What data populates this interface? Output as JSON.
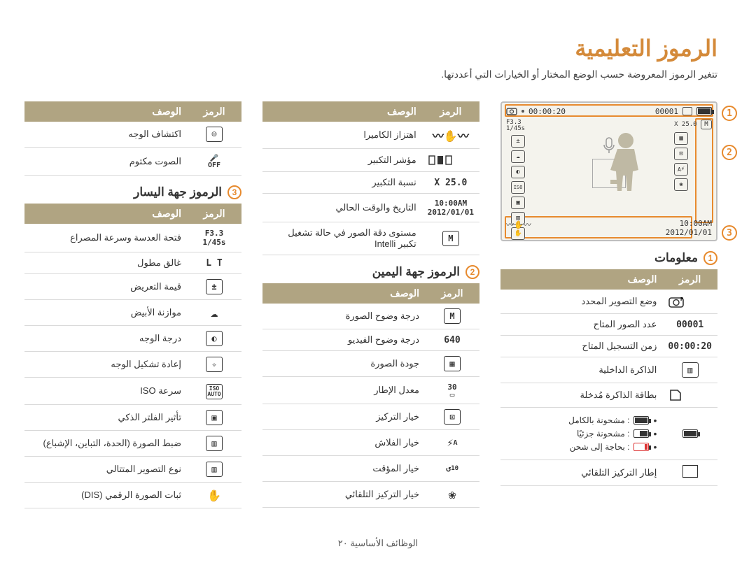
{
  "page": {
    "title": "الرموز التعليمية",
    "subtitle": "تتغير الرموز المعروضة حسب الوضع المختار أو الخيارات التي أعددتها.",
    "footer": "الوظائف الأساسية ٢٠"
  },
  "colors": {
    "accent": "#e78a2e",
    "header_bg": "#b0a482",
    "title": "#d48a3a",
    "border": "#d9d9d9"
  },
  "preview": {
    "rec_time": "00:00:20",
    "counter": "00001",
    "aperture": "F3.3",
    "shutter": "1/45s",
    "zoom": "X 25.0",
    "mode": "M",
    "time": "10:00AM",
    "date": "2012/01/01",
    "auto_flash": "A"
  },
  "table_headers": {
    "symbol": "الرمز",
    "desc": "الوصف"
  },
  "sections": {
    "info": {
      "num": "1",
      "title": "معلومات"
    },
    "right": {
      "num": "2",
      "title": "الرموز جهة اليمين"
    },
    "left": {
      "num": "3",
      "title": "الرموز جهة اليسار"
    }
  },
  "info_rows": [
    {
      "sym_text": "",
      "sym_kind": "mode",
      "desc": "وضع التصوير المحدد"
    },
    {
      "sym_text": "00001",
      "sym_kind": "text",
      "desc": "عدد الصور المتاح"
    },
    {
      "sym_text": "00:00:20",
      "sym_kind": "text",
      "desc": "زمن التسجيل المتاح"
    },
    {
      "sym_text": "",
      "sym_kind": "mem_int",
      "desc": "الذاكرة الداخلية"
    },
    {
      "sym_text": "",
      "sym_kind": "mem_card",
      "desc": "بطاقة الذاكرة مُدخلة"
    },
    {
      "sym_text": "",
      "sym_kind": "battery",
      "desc_list": [
        {
          "lvl": "full",
          "txt": ": مشحونة بالكامل"
        },
        {
          "lvl": "half",
          "txt": ": مشحونة جزئيًا"
        },
        {
          "lvl": "low",
          "txt": ": بحاجة إلى شحن"
        }
      ]
    },
    {
      "sym_text": "",
      "sym_kind": "af_frame",
      "desc": "إطار التركيز التلقائي"
    }
  ],
  "mid_top_rows": [
    {
      "sym_kind": "shake",
      "desc": "اهتزاز الكاميرا"
    },
    {
      "sym_kind": "zoombar",
      "desc": "مؤشر التكبير"
    },
    {
      "sym_text": "X 25.0",
      "sym_kind": "text",
      "desc": "نسبة التكبير"
    },
    {
      "sym_text": "10:00AM\n2012/01/01",
      "sym_kind": "text2",
      "desc": "التاريخ والوقت الحالي"
    },
    {
      "sym_kind": "intelli",
      "sym_text": "M",
      "desc": "مستوى دقة الصور في حالة تشغيل تكبير Intelli"
    }
  ],
  "right_rows": [
    {
      "sym_kind": "intelli",
      "sym_text": "M",
      "desc": "درجة وضوح الصورة"
    },
    {
      "sym_text": "640",
      "sym_kind": "text",
      "desc": "درجة وضوح الفيديو"
    },
    {
      "sym_kind": "quality",
      "desc": "جودة الصورة"
    },
    {
      "sym_kind": "fps",
      "sym_text": "30",
      "desc": "معدل الإطار"
    },
    {
      "sym_kind": "focus",
      "desc": "خيار التركيز"
    },
    {
      "sym_kind": "flash",
      "sym_text": "A",
      "desc": "خيار الفلاش"
    },
    {
      "sym_kind": "timer",
      "sym_text": "10",
      "desc": "خيار المؤقت"
    },
    {
      "sym_kind": "macro",
      "desc": "خيار التركيز التلقائي"
    }
  ],
  "left_top_rows": [
    {
      "sym_kind": "face",
      "desc": "اكتشاف الوجه"
    },
    {
      "sym_kind": "mute",
      "desc": "الصوت مكتوم"
    }
  ],
  "left_rows": [
    {
      "sym_text": "F3.3\n1/45s",
      "sym_kind": "text2",
      "desc": "فتحة العدسة وسرعة المصراع"
    },
    {
      "sym_text": "L T",
      "sym_kind": "text",
      "desc": "غالق مطول"
    },
    {
      "sym_kind": "ev",
      "desc": "قيمة التعريض"
    },
    {
      "sym_kind": "wb",
      "desc": "موازنة الأبيض"
    },
    {
      "sym_kind": "facetone",
      "desc": "درجة الوجه"
    },
    {
      "sym_kind": "retouch",
      "desc": "إعادة تشكيل الوجه"
    },
    {
      "sym_kind": "iso",
      "desc": "سرعة ISO"
    },
    {
      "sym_kind": "filter",
      "desc": "تأثير الفلتر الذكي"
    },
    {
      "sym_kind": "adjust",
      "desc": "ضبط الصورة (الحدة، التباين، الإشباع)"
    },
    {
      "sym_kind": "drive",
      "desc": "نوع التصوير المتتالي"
    },
    {
      "sym_kind": "dis",
      "desc": "ثبات الصورة الرقمي (DIS)"
    }
  ]
}
